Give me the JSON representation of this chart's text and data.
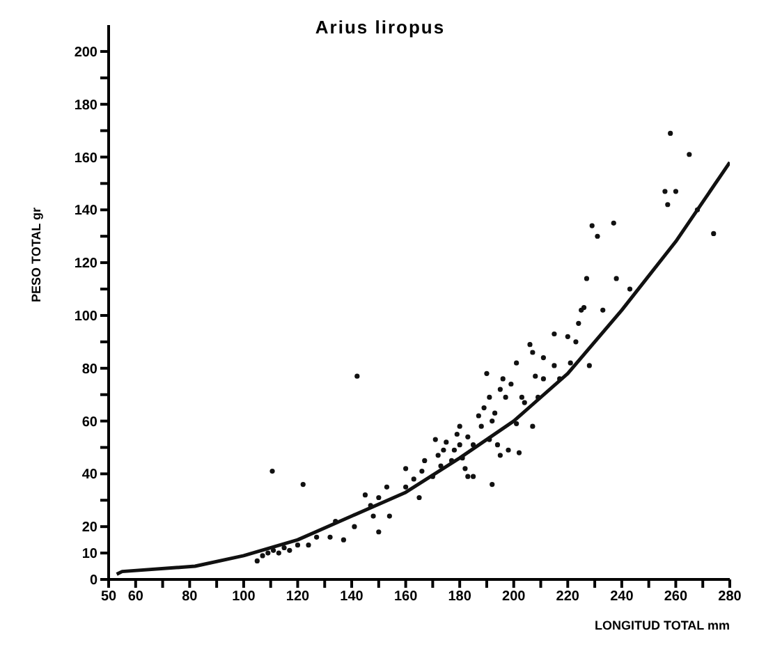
{
  "chart_data": {
    "type": "scatter",
    "title": "Arius liropus",
    "xlabel": "LONGITUD TOTAL mm",
    "ylabel": "PESO TOTAL gr",
    "xlim": [
      50,
      280
    ],
    "ylim": [
      0,
      210
    ],
    "xticks": [
      50,
      60,
      {
        "value": 70,
        "label": null
      },
      80,
      {
        "value": 90,
        "label": null
      },
      100,
      {
        "value": 110,
        "label": null
      },
      120,
      {
        "value": 130,
        "label": null
      },
      140,
      {
        "value": 150,
        "label": null
      },
      160,
      {
        "value": 170,
        "label": null
      },
      180,
      {
        "value": 190,
        "label": null
      },
      200,
      {
        "value": 210,
        "label": null
      },
      220,
      {
        "value": 230,
        "label": null
      },
      240,
      {
        "value": 250,
        "label": null
      },
      260,
      {
        "value": 270,
        "label": null
      },
      280
    ],
    "yticks": [
      0,
      10,
      20,
      {
        "value": 30,
        "label": null
      },
      40,
      {
        "value": 50,
        "label": null
      },
      60,
      {
        "value": 70,
        "label": null
      },
      80,
      {
        "value": 90,
        "label": null
      },
      100,
      {
        "value": 110,
        "label": null
      },
      120,
      {
        "value": 130,
        "label": null
      },
      140,
      {
        "value": 150,
        "label": null
      },
      160,
      {
        "value": 170,
        "label": null
      },
      180,
      {
        "value": 190,
        "label": null
      },
      200
    ],
    "grid": false,
    "legend": false,
    "marker": "circle",
    "series": [
      {
        "type": "scatter",
        "color": "#111111",
        "x": [
          110.6,
          122,
          142,
          105,
          107,
          109,
          111,
          113,
          115,
          117,
          120,
          124,
          127,
          132,
          134,
          137,
          141,
          145,
          147,
          148,
          150,
          150,
          153,
          154,
          160,
          160,
          163,
          165,
          166,
          167,
          170,
          171,
          172,
          173,
          174,
          175,
          177,
          178,
          179,
          180,
          180,
          181,
          182,
          183,
          183,
          185,
          185,
          187,
          188,
          189,
          190,
          191,
          191,
          192,
          192,
          193,
          194,
          195,
          195,
          196,
          197,
          198,
          199,
          201,
          201,
          202,
          203,
          204,
          206,
          207,
          207,
          208,
          209,
          211,
          211,
          215,
          215,
          217,
          220,
          221,
          223,
          224,
          226,
          233,
          228,
          229,
          231,
          237,
          227,
          238,
          243,
          225,
          258,
          265,
          256,
          260,
          257,
          268,
          274
        ],
        "values": [
          41,
          36,
          77,
          7,
          9,
          10,
          11,
          10,
          12,
          11,
          13,
          13,
          16,
          16,
          22,
          15,
          20,
          32,
          28,
          24,
          18,
          31,
          35,
          24,
          42,
          35,
          38,
          31,
          41,
          45,
          39,
          53,
          47,
          43,
          49,
          52,
          45,
          49,
          55,
          51,
          58,
          46,
          42,
          54,
          39,
          51,
          39,
          62,
          58,
          65,
          78,
          69,
          53,
          60,
          36,
          63,
          51,
          72,
          47,
          76,
          69,
          49,
          74,
          82,
          59,
          48,
          69,
          67,
          89,
          58,
          86,
          77,
          69,
          84,
          76,
          81,
          93,
          76,
          92,
          82,
          90,
          97,
          103,
          102,
          81,
          134,
          130,
          135,
          114,
          114,
          110,
          102,
          169,
          161,
          147,
          147,
          142,
          140,
          131
        ]
      },
      {
        "type": "line",
        "color": "#111111",
        "marker": "none",
        "line_style": "solid",
        "x": [
          53,
          55,
          82,
          100,
          120,
          140,
          160,
          180,
          200,
          220,
          240,
          260,
          280
        ],
        "values": [
          2,
          3,
          5,
          9,
          15,
          24,
          33,
          46,
          60,
          78,
          102,
          128,
          158
        ]
      }
    ]
  }
}
